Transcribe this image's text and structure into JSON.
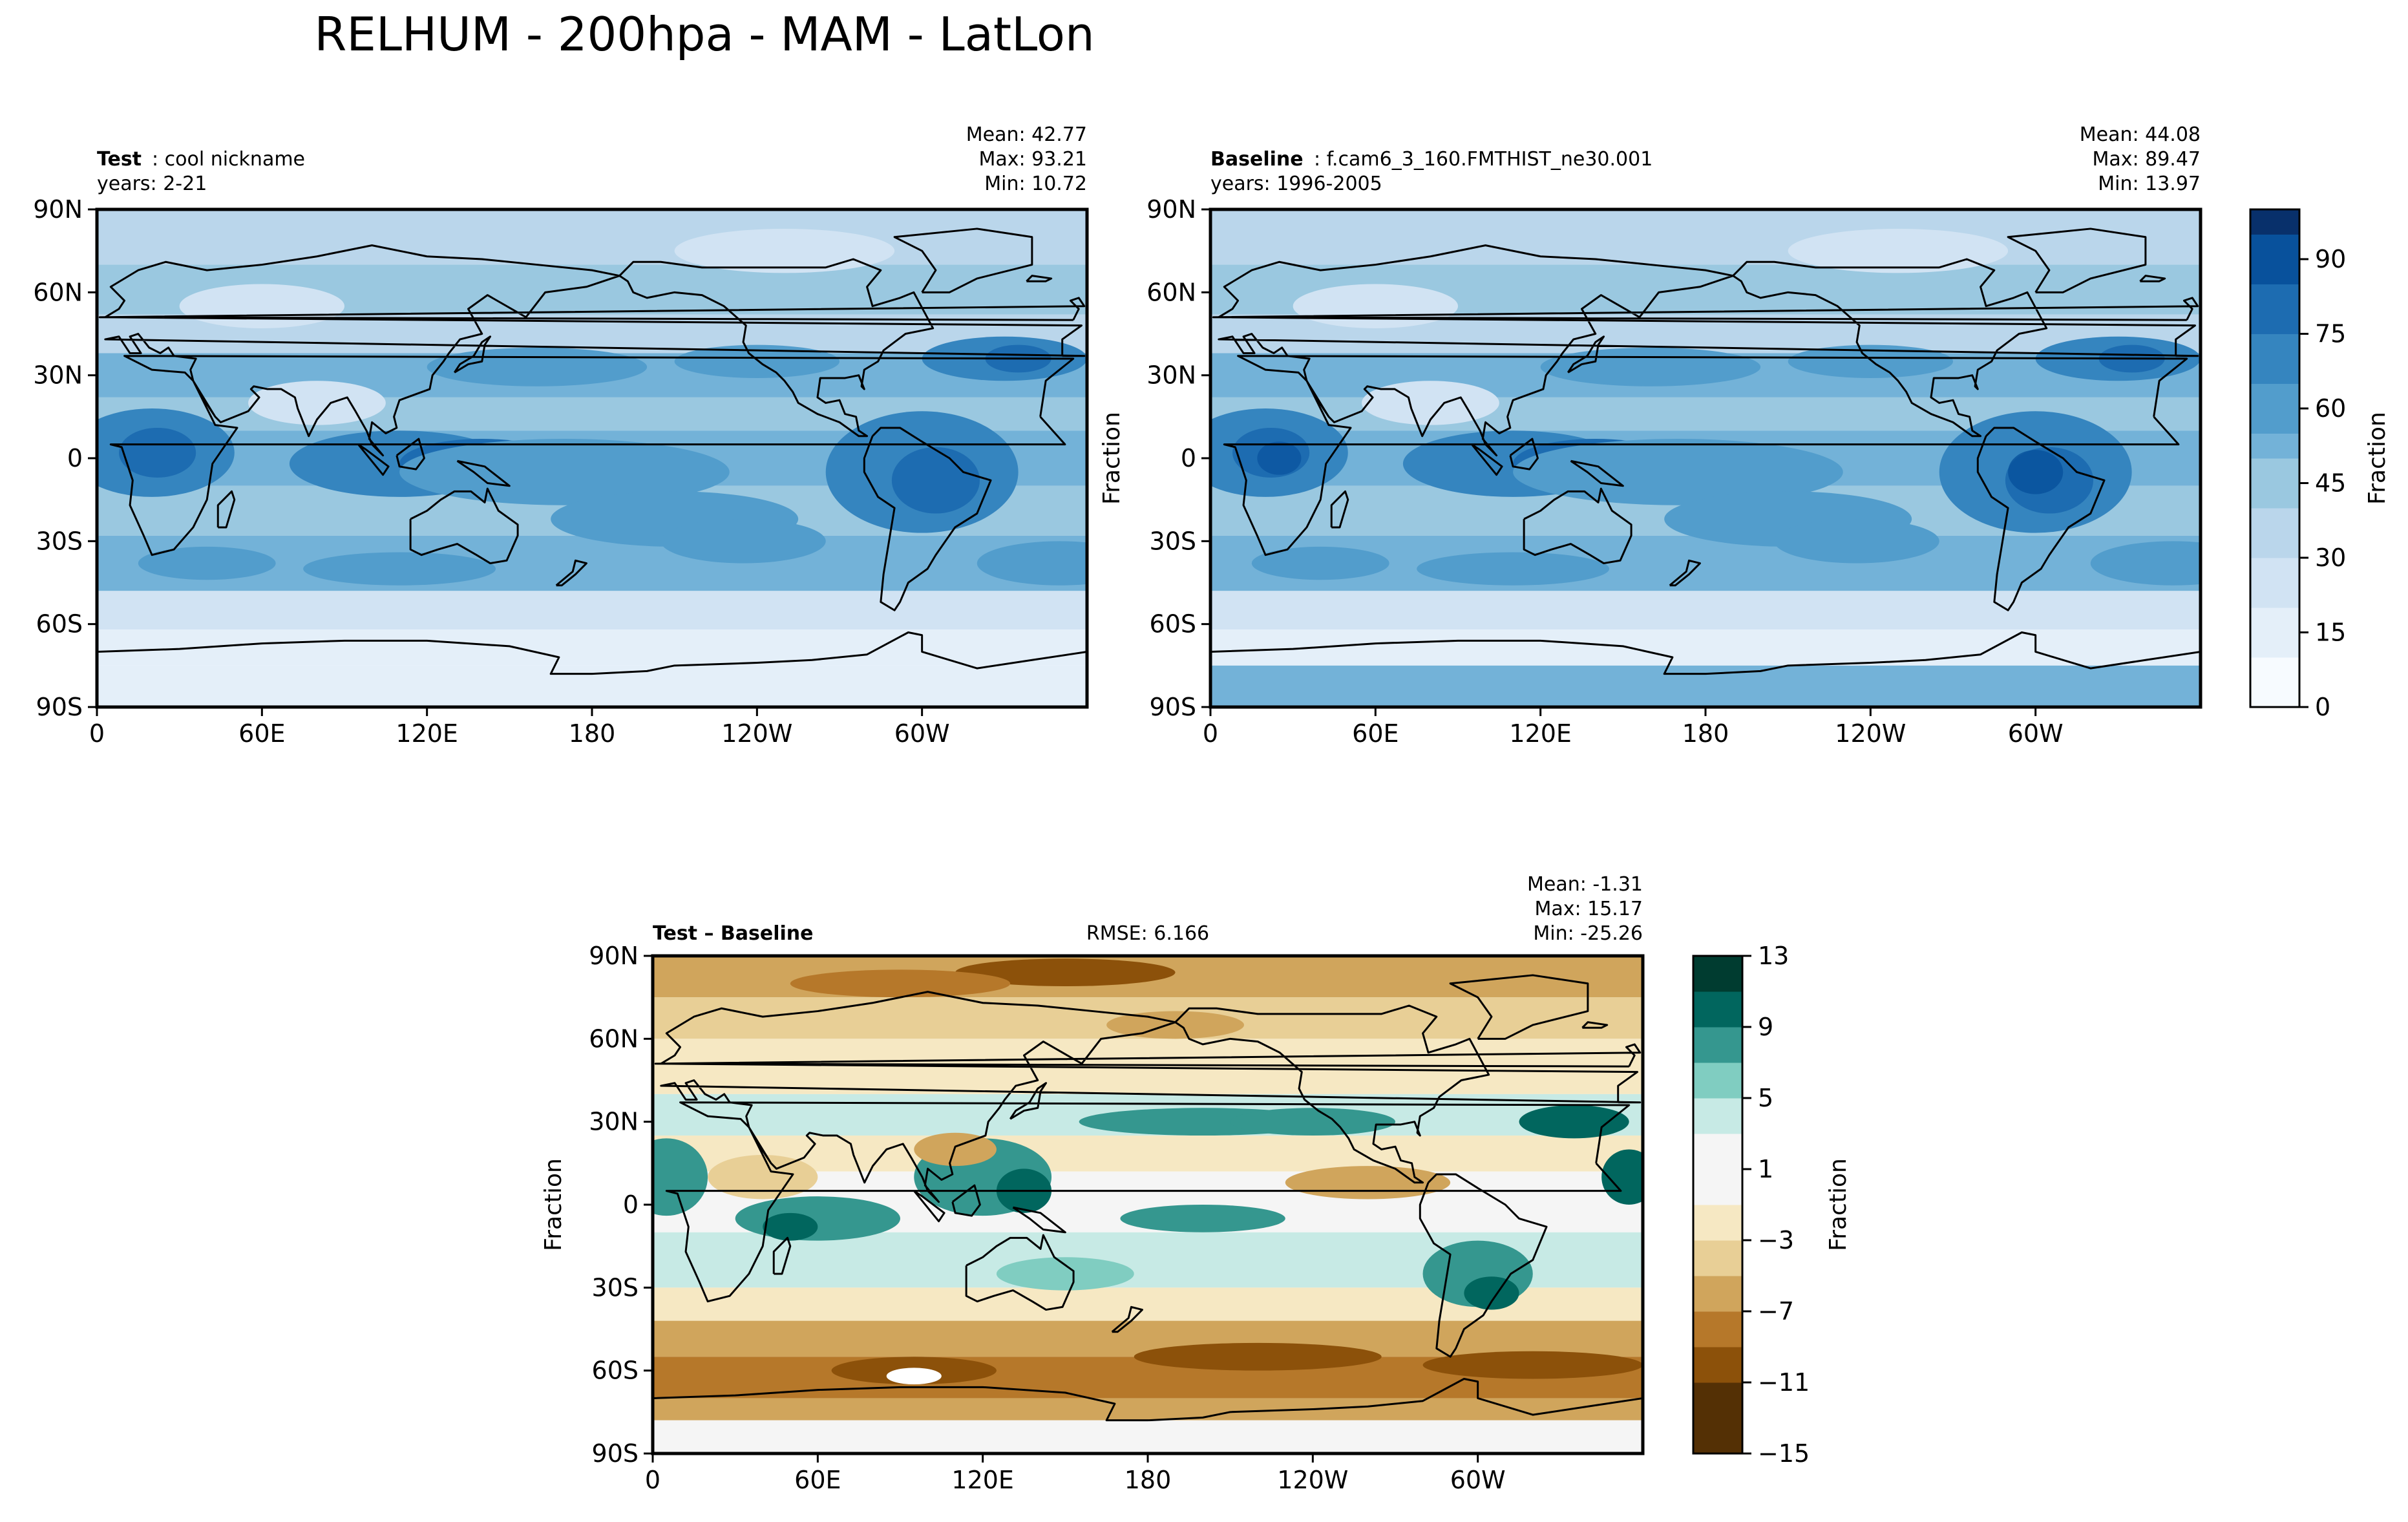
{
  "figure_title": "RELHUM - 200hpa - MAM - LatLon",
  "colors": {
    "seq_palette": [
      "#f7fbff",
      "#e4eff9",
      "#d1e3f3",
      "#bad6eb",
      "#9ac8e0",
      "#73b2d8",
      "#529dcc",
      "#3585bf",
      "#1d6cb1",
      "#08519c",
      "#08306b"
    ],
    "div_palette": [
      "#543005",
      "#8c510a",
      "#b6782a",
      "#d0a55c",
      "#e8cf96",
      "#f6e8c3",
      "#f5f5f5",
      "#c7eae5",
      "#80cdc1",
      "#35978f",
      "#01665e",
      "#003c30"
    ],
    "land_outline": "#000000"
  },
  "chart_data": [
    {
      "type": "heatmap",
      "panel": "test",
      "title_bold": "Test",
      "title_rest": ": cool nickname",
      "years": "years: 2-21",
      "stats": [
        "Mean: 42.77",
        "Max: 93.21",
        "Min: 10.72"
      ],
      "ylabel": "",
      "x_ticks": [
        "0",
        "60E",
        "120E",
        "180",
        "120W",
        "60W"
      ],
      "y_ticks": [
        "90N",
        "60N",
        "30N",
        "0",
        "30S",
        "60S",
        "90S"
      ],
      "colormap": "seq",
      "value_range": [
        0,
        100
      ]
    },
    {
      "type": "heatmap",
      "panel": "baseline",
      "title_bold": "Baseline",
      "title_rest": ": f.cam6_3_160.FMTHIST_ne30.001",
      "years": "years: 1996-2005",
      "stats": [
        "Mean: 44.08",
        "Max: 89.47",
        "Min: 13.97"
      ],
      "ylabel": "Fraction",
      "x_ticks": [
        "0",
        "60E",
        "120E",
        "180",
        "120W",
        "60W"
      ],
      "y_ticks": [
        "90N",
        "60N",
        "30N",
        "0",
        "30S",
        "60S",
        "90S"
      ],
      "colormap": "seq",
      "value_range": [
        0,
        100
      ]
    },
    {
      "type": "heatmap",
      "panel": "diff",
      "title_bold": "Test – Baseline",
      "rmse": "RMSE: 6.166",
      "stats": [
        "Mean: -1.31",
        "Max: 15.17",
        "Min: -25.26"
      ],
      "ylabel": "Fraction",
      "x_ticks": [
        "0",
        "60E",
        "120E",
        "180",
        "120W",
        "60W"
      ],
      "y_ticks": [
        "90N",
        "60N",
        "30N",
        "0",
        "30S",
        "60S",
        "90S"
      ],
      "colormap": "div",
      "value_range": [
        -15,
        13
      ]
    }
  ],
  "colorbars": {
    "top": {
      "ticks": [
        "0",
        "15",
        "30",
        "45",
        "60",
        "75",
        "90"
      ],
      "values": [
        0,
        15,
        30,
        45,
        60,
        75,
        90
      ],
      "min": 0,
      "max": 100,
      "label": "Fraction"
    },
    "bottom": {
      "ticks": [
        "−15",
        "−11",
        "−7",
        "−3",
        "1",
        "5",
        "9",
        "13"
      ],
      "values": [
        -15,
        -11,
        -7,
        -3,
        1,
        5,
        9,
        13
      ],
      "min": -15,
      "max": 13,
      "label": "Fraction"
    }
  }
}
